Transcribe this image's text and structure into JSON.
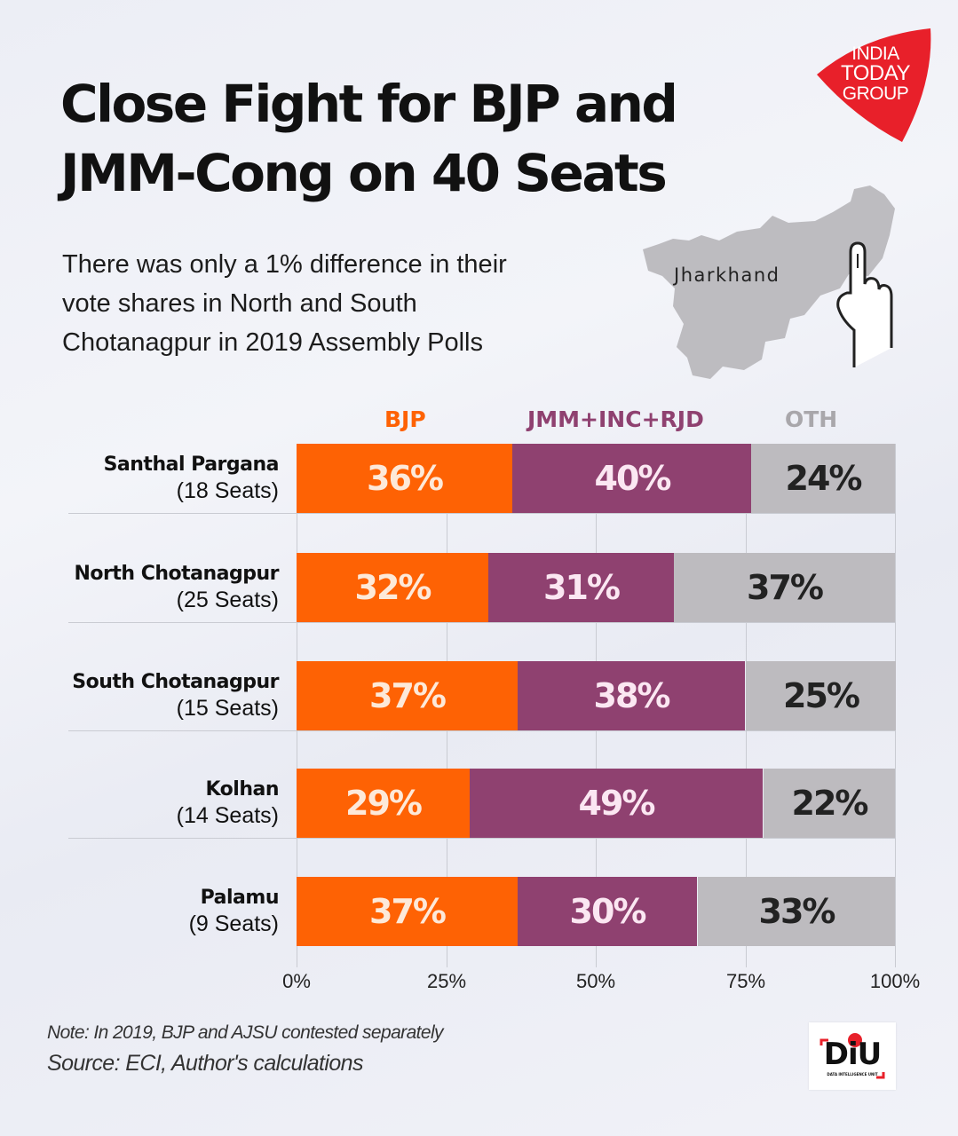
{
  "header": {
    "title_line1": "Close Fight for BJP and",
    "title_line2": "JMM-Cong on 40 Seats",
    "subtitle_line1": "There was only a 1% difference in their",
    "subtitle_line2": "vote shares in North and South",
    "subtitle_line3": "Chotanagpur in 2019 Assembly Polls"
  },
  "logo": {
    "line1": "INDIA",
    "line2": "TODAY",
    "line3": "GROUP",
    "color": "#e8202a"
  },
  "map": {
    "label": "Jharkhand",
    "icon": "voting-finger-icon"
  },
  "footer": {
    "note": "Note: In 2019, BJP and AJSU contested separately",
    "source": "Source: ECI, Author's calculations",
    "diu_logo": "DiU",
    "diu_sub": "DATA INTELLIGENCE UNIT"
  },
  "chart_data": {
    "type": "bar",
    "orientation": "horizontal",
    "stacked": true,
    "title": "Close Fight for BJP and JMM-Cong on 40 Seats",
    "xlim": [
      0,
      100
    ],
    "xticks": [
      "0%",
      "25%",
      "50%",
      "75%",
      "100%"
    ],
    "xtick_values": [
      0,
      25,
      50,
      75,
      100
    ],
    "grid": true,
    "legend_position": "top",
    "categories": [
      {
        "name": "Santhal Pargana",
        "seats": "(18 Seats)"
      },
      {
        "name": "North Chotanagpur",
        "seats": "(25 Seats)"
      },
      {
        "name": "South Chotanagpur",
        "seats": "(15 Seats)"
      },
      {
        "name": "Kolhan",
        "seats": "(14 Seats)"
      },
      {
        "name": "Palamu",
        "seats": "(9 Seats)"
      }
    ],
    "series": [
      {
        "name": "BJP",
        "color": "#fe6204",
        "text_color": "#fde9d9",
        "values": [
          36,
          32,
          37,
          29,
          37
        ],
        "labels": [
          "36%",
          "32%",
          "37%",
          "29%",
          "37%"
        ]
      },
      {
        "name": "JMM+INC+RJD",
        "color": "#8f4170",
        "text_color": "#fbe7f2",
        "values": [
          40,
          31,
          38,
          49,
          30
        ],
        "labels": [
          "40%",
          "31%",
          "38%",
          "49%",
          "30%"
        ]
      },
      {
        "name": "OTH",
        "color": "#bdbbbf",
        "legend_color": "#a9a7ab",
        "text_color": "#222222",
        "values": [
          24,
          37,
          25,
          22,
          33
        ],
        "labels": [
          "24%",
          "37%",
          "25%",
          "22%",
          "33%"
        ]
      }
    ]
  }
}
